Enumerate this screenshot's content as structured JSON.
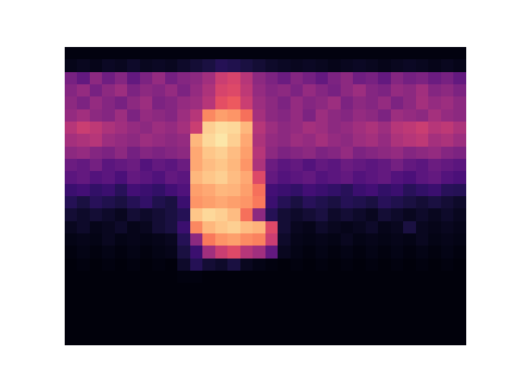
{
  "chart_data": {
    "type": "heatmap",
    "color": "magma",
    "tick_labels": false,
    "color_range": [
      0,
      1
    ],
    "cells": [
      [
        0.03,
        0.03,
        0.03,
        0.03,
        0.03,
        0.03,
        0.03,
        0.03,
        0.03,
        0.03,
        0.03,
        0.03,
        0.03,
        0.03,
        0.03,
        0.03,
        0.03,
        0.03,
        0.03,
        0.03,
        0.03,
        0.03,
        0.03,
        0.03,
        0.03,
        0.03,
        0.03,
        0.03,
        0.03,
        0.03,
        0.03,
        0.03
      ],
      [
        0.05,
        0.06,
        0.05,
        0.07,
        0.06,
        0.08,
        0.06,
        0.07,
        0.06,
        0.08,
        0.1,
        0.12,
        0.15,
        0.14,
        0.12,
        0.1,
        0.08,
        0.07,
        0.06,
        0.07,
        0.06,
        0.05,
        0.06,
        0.07,
        0.06,
        0.05,
        0.06,
        0.07,
        0.06,
        0.05,
        0.06,
        0.05
      ],
      [
        0.35,
        0.3,
        0.4,
        0.33,
        0.38,
        0.3,
        0.36,
        0.42,
        0.34,
        0.38,
        0.4,
        0.45,
        0.55,
        0.58,
        0.5,
        0.4,
        0.36,
        0.32,
        0.38,
        0.34,
        0.3,
        0.36,
        0.4,
        0.33,
        0.35,
        0.3,
        0.38,
        0.34,
        0.36,
        0.32,
        0.35,
        0.3
      ],
      [
        0.38,
        0.42,
        0.35,
        0.4,
        0.44,
        0.36,
        0.4,
        0.38,
        0.42,
        0.36,
        0.42,
        0.48,
        0.58,
        0.6,
        0.52,
        0.42,
        0.38,
        0.4,
        0.36,
        0.42,
        0.38,
        0.35,
        0.4,
        0.44,
        0.38,
        0.36,
        0.42,
        0.4,
        0.45,
        0.38,
        0.4,
        0.36
      ],
      [
        0.4,
        0.36,
        0.42,
        0.38,
        0.35,
        0.4,
        0.44,
        0.36,
        0.38,
        0.42,
        0.44,
        0.5,
        0.62,
        0.65,
        0.55,
        0.44,
        0.4,
        0.36,
        0.42,
        0.38,
        0.4,
        0.44,
        0.36,
        0.4,
        0.38,
        0.42,
        0.36,
        0.4,
        0.46,
        0.42,
        0.44,
        0.4
      ],
      [
        0.42,
        0.45,
        0.4,
        0.38,
        0.44,
        0.36,
        0.42,
        0.4,
        0.38,
        0.44,
        0.5,
        0.75,
        0.8,
        0.78,
        0.7,
        0.46,
        0.4,
        0.38,
        0.42,
        0.36,
        0.44,
        0.4,
        0.38,
        0.42,
        0.4,
        0.36,
        0.44,
        0.42,
        0.4,
        0.46,
        0.42,
        0.4
      ],
      [
        0.5,
        0.55,
        0.52,
        0.48,
        0.45,
        0.42,
        0.4,
        0.44,
        0.42,
        0.46,
        0.55,
        0.9,
        0.93,
        0.92,
        0.85,
        0.5,
        0.44,
        0.4,
        0.42,
        0.46,
        0.44,
        0.4,
        0.42,
        0.45,
        0.48,
        0.44,
        0.5,
        0.52,
        0.55,
        0.5,
        0.52,
        0.48
      ],
      [
        0.46,
        0.48,
        0.5,
        0.44,
        0.42,
        0.4,
        0.44,
        0.42,
        0.4,
        0.42,
        0.85,
        0.92,
        0.95,
        0.9,
        0.82,
        0.48,
        0.42,
        0.4,
        0.44,
        0.42,
        0.46,
        0.42,
        0.4,
        0.44,
        0.46,
        0.42,
        0.48,
        0.5,
        0.52,
        0.46,
        0.48,
        0.44
      ],
      [
        0.4,
        0.42,
        0.38,
        0.36,
        0.4,
        0.34,
        0.38,
        0.36,
        0.38,
        0.4,
        0.82,
        0.88,
        0.9,
        0.86,
        0.8,
        0.5,
        0.4,
        0.36,
        0.38,
        0.4,
        0.36,
        0.38,
        0.42,
        0.36,
        0.38,
        0.4,
        0.42,
        0.38,
        0.4,
        0.42,
        0.38,
        0.36
      ],
      [
        0.32,
        0.3,
        0.34,
        0.28,
        0.3,
        0.32,
        0.26,
        0.3,
        0.28,
        0.32,
        0.82,
        0.86,
        0.88,
        0.85,
        0.78,
        0.48,
        0.32,
        0.28,
        0.3,
        0.26,
        0.3,
        0.28,
        0.32,
        0.3,
        0.28,
        0.3,
        0.34,
        0.3,
        0.28,
        0.32,
        0.3,
        0.28
      ],
      [
        0.28,
        0.3,
        0.26,
        0.28,
        0.24,
        0.3,
        0.28,
        0.25,
        0.3,
        0.28,
        0.85,
        0.88,
        0.9,
        0.86,
        0.82,
        0.6,
        0.3,
        0.26,
        0.28,
        0.3,
        0.26,
        0.28,
        0.3,
        0.26,
        0.28,
        0.3,
        0.26,
        0.24,
        0.28,
        0.3,
        0.26,
        0.24
      ],
      [
        0.2,
        0.22,
        0.18,
        0.2,
        0.16,
        0.22,
        0.2,
        0.18,
        0.22,
        0.25,
        0.8,
        0.82,
        0.85,
        0.84,
        0.8,
        0.7,
        0.22,
        0.2,
        0.18,
        0.22,
        0.2,
        0.18,
        0.16,
        0.2,
        0.22,
        0.18,
        0.2,
        0.16,
        0.18,
        0.2,
        0.16,
        0.15
      ],
      [
        0.15,
        0.12,
        0.16,
        0.14,
        0.12,
        0.15,
        0.18,
        0.14,
        0.12,
        0.2,
        0.78,
        0.8,
        0.82,
        0.8,
        0.78,
        0.72,
        0.2,
        0.15,
        0.12,
        0.16,
        0.14,
        0.12,
        0.15,
        0.14,
        0.12,
        0.16,
        0.14,
        0.12,
        0.1,
        0.12,
        0.1,
        0.08
      ],
      [
        0.1,
        0.08,
        0.1,
        0.08,
        0.06,
        0.1,
        0.08,
        0.1,
        0.12,
        0.15,
        0.88,
        0.92,
        0.9,
        0.86,
        0.7,
        0.4,
        0.15,
        0.1,
        0.08,
        0.1,
        0.12,
        0.08,
        0.1,
        0.08,
        0.06,
        0.1,
        0.08,
        0.06,
        0.08,
        0.06,
        0.08,
        0.06
      ],
      [
        0.06,
        0.08,
        0.05,
        0.06,
        0.08,
        0.05,
        0.06,
        0.1,
        0.12,
        0.2,
        0.75,
        0.85,
        0.88,
        0.9,
        0.86,
        0.84,
        0.6,
        0.1,
        0.06,
        0.05,
        0.08,
        0.06,
        0.05,
        0.06,
        0.08,
        0.05,
        0.06,
        0.12,
        0.06,
        0.05,
        0.06,
        0.05
      ],
      [
        0.04,
        0.05,
        0.04,
        0.06,
        0.04,
        0.05,
        0.04,
        0.05,
        0.06,
        0.15,
        0.4,
        0.72,
        0.78,
        0.8,
        0.76,
        0.74,
        0.55,
        0.08,
        0.05,
        0.04,
        0.05,
        0.04,
        0.06,
        0.04,
        0.05,
        0.04,
        0.05,
        0.04,
        0.06,
        0.04,
        0.05,
        0.04
      ],
      [
        0.03,
        0.04,
        0.03,
        0.04,
        0.03,
        0.04,
        0.03,
        0.04,
        0.05,
        0.12,
        0.2,
        0.45,
        0.55,
        0.6,
        0.5,
        0.45,
        0.3,
        0.06,
        0.04,
        0.03,
        0.04,
        0.03,
        0.04,
        0.03,
        0.04,
        0.03,
        0.04,
        0.03,
        0.04,
        0.03,
        0.04,
        0.03
      ],
      [
        0.02,
        0.03,
        0.02,
        0.03,
        0.02,
        0.03,
        0.02,
        0.03,
        0.02,
        0.08,
        0.15,
        0.1,
        0.08,
        0.12,
        0.06,
        0.04,
        0.03,
        0.02,
        0.03,
        0.02,
        0.03,
        0.02,
        0.03,
        0.02,
        0.03,
        0.02,
        0.03,
        0.02,
        0.03,
        0.02,
        0.03,
        0.02
      ],
      [
        0.02,
        0.02,
        0.02,
        0.02,
        0.02,
        0.02,
        0.02,
        0.02,
        0.02,
        0.03,
        0.03,
        0.02,
        0.02,
        0.02,
        0.02,
        0.02,
        0.02,
        0.02,
        0.02,
        0.02,
        0.02,
        0.02,
        0.02,
        0.02,
        0.02,
        0.02,
        0.02,
        0.02,
        0.02,
        0.02,
        0.02,
        0.02
      ],
      [
        0.02,
        0.02,
        0.02,
        0.02,
        0.02,
        0.02,
        0.02,
        0.02,
        0.02,
        0.02,
        0.02,
        0.02,
        0.02,
        0.02,
        0.02,
        0.02,
        0.02,
        0.02,
        0.02,
        0.02,
        0.02,
        0.02,
        0.02,
        0.02,
        0.02,
        0.02,
        0.02,
        0.02,
        0.02,
        0.02,
        0.02,
        0.02
      ],
      [
        0.02,
        0.02,
        0.02,
        0.02,
        0.02,
        0.02,
        0.02,
        0.02,
        0.02,
        0.02,
        0.02,
        0.02,
        0.02,
        0.02,
        0.02,
        0.02,
        0.02,
        0.02,
        0.02,
        0.02,
        0.02,
        0.02,
        0.02,
        0.02,
        0.02,
        0.02,
        0.02,
        0.02,
        0.02,
        0.02,
        0.02,
        0.02
      ],
      [
        0.02,
        0.02,
        0.02,
        0.02,
        0.02,
        0.02,
        0.02,
        0.02,
        0.02,
        0.02,
        0.02,
        0.02,
        0.02,
        0.02,
        0.02,
        0.02,
        0.02,
        0.02,
        0.02,
        0.02,
        0.02,
        0.02,
        0.02,
        0.02,
        0.02,
        0.02,
        0.02,
        0.02,
        0.02,
        0.02,
        0.02,
        0.02
      ],
      [
        0.02,
        0.02,
        0.02,
        0.02,
        0.02,
        0.02,
        0.02,
        0.02,
        0.02,
        0.02,
        0.02,
        0.02,
        0.02,
        0.02,
        0.02,
        0.02,
        0.02,
        0.02,
        0.02,
        0.02,
        0.02,
        0.02,
        0.02,
        0.02,
        0.02,
        0.02,
        0.02,
        0.02,
        0.02,
        0.02,
        0.02,
        0.02
      ],
      [
        0.02,
        0.02,
        0.02,
        0.02,
        0.02,
        0.02,
        0.02,
        0.02,
        0.02,
        0.02,
        0.02,
        0.02,
        0.02,
        0.02,
        0.02,
        0.02,
        0.02,
        0.02,
        0.02,
        0.02,
        0.02,
        0.02,
        0.02,
        0.02,
        0.02,
        0.02,
        0.02,
        0.02,
        0.02,
        0.02,
        0.02,
        0.02
      ]
    ]
  }
}
